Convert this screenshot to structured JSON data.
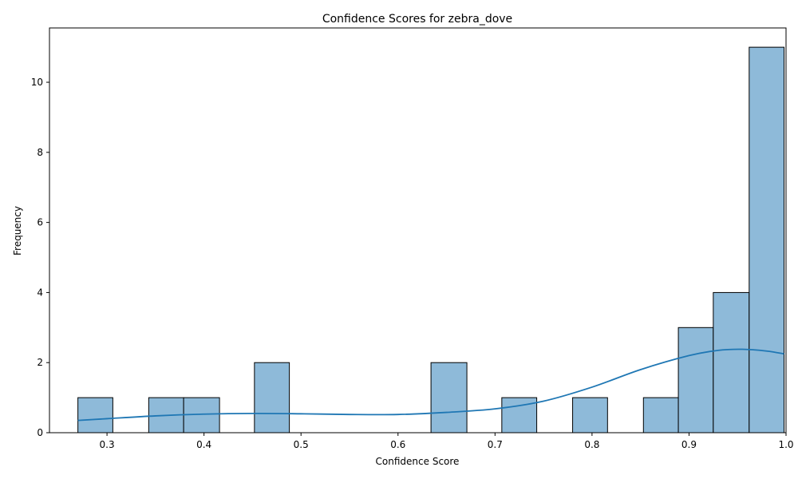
{
  "chart_data": {
    "type": "bar",
    "title": "Confidence Scores for zebra_dove",
    "xlabel": "Confidence Score",
    "ylabel": "Frequency",
    "xlim": [
      0.2407,
      1.0
    ],
    "ylim": [
      0,
      11.55
    ],
    "x_ticks": [
      "0.3",
      "0.4",
      "0.5",
      "0.6",
      "0.7",
      "0.8",
      "0.9",
      "1.0"
    ],
    "y_ticks": [
      "0",
      "2",
      "4",
      "6",
      "8",
      "10"
    ],
    "x_tick_values": [
      0.3,
      0.4,
      0.5,
      0.6,
      0.7,
      0.8,
      0.9,
      1.0
    ],
    "y_tick_values": [
      0,
      2,
      4,
      6,
      8,
      10
    ],
    "bins": [
      {
        "x0": 0.27,
        "x1": 0.306,
        "count": 1
      },
      {
        "x0": 0.343,
        "x1": 0.379,
        "count": 1
      },
      {
        "x0": 0.379,
        "x1": 0.416,
        "count": 1
      },
      {
        "x0": 0.452,
        "x1": 0.488,
        "count": 2
      },
      {
        "x0": 0.634,
        "x1": 0.671,
        "count": 2
      },
      {
        "x0": 0.707,
        "x1": 0.743,
        "count": 1
      },
      {
        "x0": 0.78,
        "x1": 0.816,
        "count": 1
      },
      {
        "x0": 0.853,
        "x1": 0.889,
        "count": 1
      },
      {
        "x0": 0.889,
        "x1": 0.925,
        "count": 3
      },
      {
        "x0": 0.925,
        "x1": 0.962,
        "count": 4
      },
      {
        "x0": 0.962,
        "x1": 0.998,
        "count": 11
      }
    ],
    "kde_curve": {
      "x": [
        0.27,
        0.3,
        0.35,
        0.4,
        0.45,
        0.5,
        0.55,
        0.6,
        0.65,
        0.7,
        0.75,
        0.8,
        0.85,
        0.9,
        0.93,
        0.955,
        0.98,
        0.998
      ],
      "y": [
        0.35,
        0.4,
        0.48,
        0.53,
        0.55,
        0.54,
        0.52,
        0.52,
        0.58,
        0.68,
        0.9,
        1.3,
        1.8,
        2.2,
        2.35,
        2.38,
        2.33,
        2.25
      ]
    },
    "grid": false,
    "colors": {
      "bar_fill": "#8ebad9",
      "bar_edge": "#000000",
      "kde_line": "#1f77b4"
    }
  }
}
